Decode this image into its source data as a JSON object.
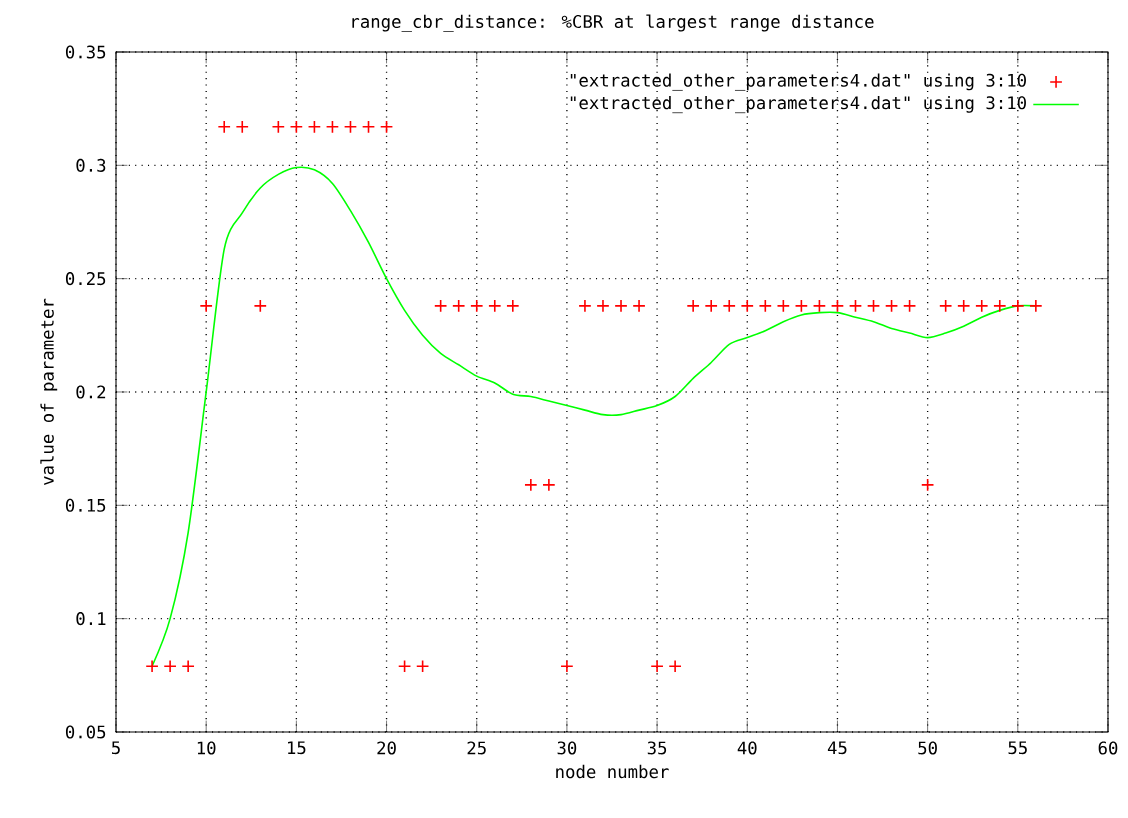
{
  "chart_data": {
    "type": "scatter",
    "title": "range_cbr_distance: %CBR at largest range distance",
    "xlabel": "node number",
    "ylabel": "value of parameter",
    "x": [
      7,
      8,
      9,
      10,
      11,
      12,
      13,
      14,
      15,
      16,
      17,
      18,
      19,
      20,
      21,
      22,
      23,
      24,
      25,
      26,
      27,
      28,
      29,
      30,
      31,
      32,
      33,
      34,
      35,
      36,
      37,
      38,
      39,
      40,
      41,
      42,
      43,
      44,
      45,
      46,
      47,
      48,
      49,
      50,
      51,
      52,
      53,
      54,
      55,
      56
    ],
    "series": [
      {
        "name": "\"extracted_other_parameters4.dat\" using 3:10",
        "color": "#ff0000",
        "marker": "cross",
        "values": [
          0.079,
          0.079,
          0.079,
          0.238,
          0.317,
          0.317,
          0.238,
          0.317,
          0.317,
          0.317,
          0.317,
          0.317,
          0.317,
          0.317,
          0.079,
          0.079,
          0.238,
          0.238,
          0.238,
          0.238,
          0.238,
          0.159,
          0.159,
          0.079,
          0.238,
          0.238,
          0.238,
          0.238,
          0.079,
          0.079,
          0.238,
          0.238,
          0.238,
          0.238,
          0.238,
          0.238,
          0.238,
          0.238,
          0.238,
          0.238,
          0.238,
          0.238,
          0.238,
          0.159,
          0.238,
          0.238,
          0.238,
          0.238,
          0.238,
          0.238
        ]
      },
      {
        "name": "\"extracted_other_parameters4.dat\" using 3:10",
        "type": "line",
        "color": "#00ff00",
        "marker": "none",
        "values": [
          0.079,
          0.1,
          0.138,
          0.2,
          0.263,
          0.279,
          0.29,
          0.296,
          0.299,
          0.298,
          0.292,
          0.28,
          0.266,
          0.25,
          0.236,
          0.225,
          0.217,
          0.212,
          0.207,
          0.204,
          0.199,
          0.198,
          0.196,
          0.194,
          0.192,
          0.19,
          0.19,
          0.192,
          0.194,
          0.198,
          0.206,
          0.213,
          0.221,
          0.224,
          0.227,
          0.231,
          0.234,
          0.235,
          0.235,
          0.233,
          0.231,
          0.228,
          0.226,
          0.224,
          0.226,
          0.229,
          0.233,
          0.236,
          0.238,
          0.238
        ]
      }
    ],
    "xlim": [
      5,
      60
    ],
    "xticks": [
      5,
      10,
      15,
      20,
      25,
      30,
      35,
      40,
      45,
      50,
      55,
      60
    ],
    "ylim": [
      0.05,
      0.35
    ],
    "yticks": [
      0.05,
      0.1,
      0.15,
      0.2,
      0.25,
      0.3,
      0.35
    ],
    "grid": true,
    "legend": "top right"
  }
}
